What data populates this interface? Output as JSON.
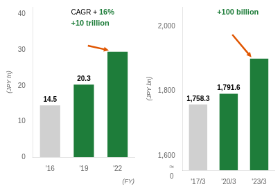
{
  "chart_data": [
    {
      "type": "bar",
      "ylabel": "(JPY tn)",
      "xlabel": "(FY)",
      "categories": [
        "'16",
        "'19",
        "'22"
      ],
      "values": [
        14.5,
        20.3,
        29.5
      ],
      "value_labels": [
        "14.5",
        "20.3",
        null
      ],
      "colors": [
        "#d0d0d0",
        "#1e7d3a",
        "#1e7d3a"
      ],
      "ylim": [
        0,
        42
      ],
      "yticks": [
        0,
        10,
        20,
        30,
        40
      ],
      "grid": false,
      "annotations": [
        {
          "text": "CAGR +"
        },
        {
          "text": "16%",
          "color": "#1e7d3a"
        },
        {
          "text": "+10",
          "color": "#1e7d3a"
        },
        {
          "text": "trillion",
          "color": "#1e7d3a"
        }
      ]
    },
    {
      "type": "bar",
      "ylabel": "(JPY bn)",
      "categories": [
        "'17/3",
        "'20/3",
        "'23/3"
      ],
      "values": [
        1758.3,
        1791.6,
        1900
      ],
      "value_labels": [
        "1,758.3",
        "1,791.6",
        null
      ],
      "colors": [
        "#d0d0d0",
        "#1e7d3a",
        "#1e7d3a"
      ],
      "ylim": [
        1555,
        2060
      ],
      "yticks": [
        {
          "value": 1600,
          "label": "1,600"
        },
        {
          "value": 1800,
          "label": "1,800"
        },
        {
          "value": 2000,
          "label": "2,000"
        }
      ],
      "grid": false,
      "annotations": [
        {
          "text": "+100",
          "color": "#1e7d3a"
        },
        {
          "text": "billion",
          "color": "#1e7d3a"
        }
      ],
      "break_labels": [
        "≈",
        "0"
      ]
    }
  ]
}
